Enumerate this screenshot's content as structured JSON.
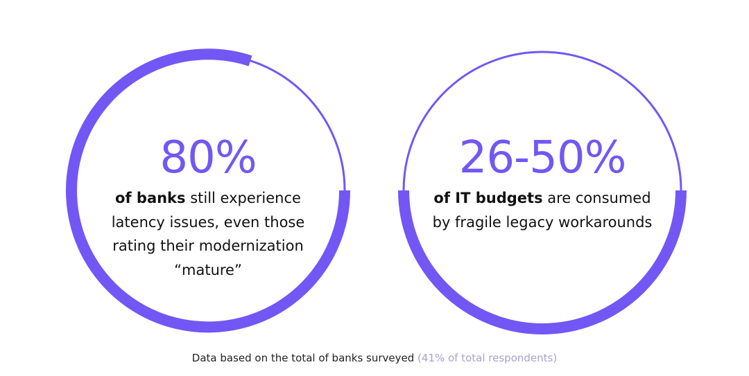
{
  "stats": [
    {
      "figure": "80%",
      "lead": "of banks",
      "first_line_rest": " still experience",
      "more_lines": [
        "latency issues, even those",
        "rating their modernization",
        "“mature”"
      ]
    },
    {
      "figure": "26-50%",
      "lead": "of IT budgets",
      "first_line_rest": " are consumed",
      "more_lines": [
        "by fragile legacy workarounds"
      ]
    }
  ],
  "footer": {
    "text": "Data based on the total of banks surveyed ",
    "note": "(41% of total respondents)"
  }
}
